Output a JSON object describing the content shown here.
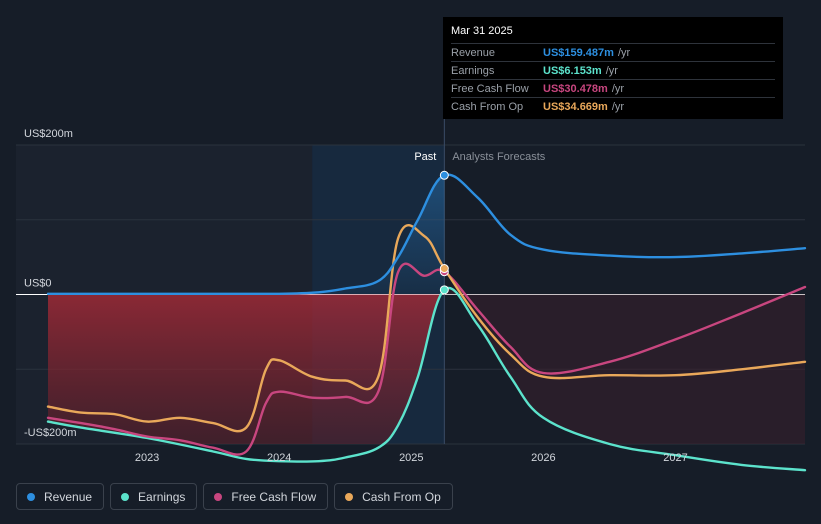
{
  "colors": {
    "revenue": "#2d8fe0",
    "earnings": "#5ce3cc",
    "free_cash_flow": "#c8467f",
    "cash_from_op": "#e9a85a",
    "background": "#161d28"
  },
  "tooltip": {
    "date": "Mar 31 2025",
    "rows": [
      {
        "label": "Revenue",
        "value": "US$159.487m",
        "unit": "/yr"
      },
      {
        "label": "Earnings",
        "value": "US$6.153m",
        "unit": "/yr"
      },
      {
        "label": "Free Cash Flow",
        "value": "US$30.478m",
        "unit": "/yr"
      },
      {
        "label": "Cash From Op",
        "value": "US$34.669m",
        "unit": "/yr"
      }
    ]
  },
  "legend": [
    {
      "label": "Revenue",
      "color": "#2d8fe0"
    },
    {
      "label": "Earnings",
      "color": "#5ce3cc"
    },
    {
      "label": "Free Cash Flow",
      "color": "#c8467f"
    },
    {
      "label": "Cash From Op",
      "color": "#e9a85a"
    }
  ],
  "chart_data": {
    "type": "line",
    "ylim": [
      -200,
      200
    ],
    "xlim": [
      2022.25,
      2027.98
    ],
    "y_tick_labels": [
      {
        "value": 200,
        "label": "US$200m"
      },
      {
        "value": 0,
        "label": "US$0"
      },
      {
        "value": -200,
        "label": "-US$200m"
      }
    ],
    "x_tick_labels": [
      {
        "value": 2023,
        "label": "2023"
      },
      {
        "value": 2024,
        "label": "2024"
      },
      {
        "value": 2025,
        "label": "2025"
      },
      {
        "value": 2026,
        "label": "2026"
      },
      {
        "value": 2027,
        "label": "2027"
      }
    ],
    "divider_x": 2025.25,
    "past_start_x": 2024.25,
    "past_label": "Past",
    "forecast_label": "Analysts Forecasts",
    "series": [
      {
        "name": "Revenue",
        "key": "revenue",
        "points": [
          [
            2022.25,
            1
          ],
          [
            2023,
            1
          ],
          [
            2023.5,
            1
          ],
          [
            2024,
            1
          ],
          [
            2024.3,
            3
          ],
          [
            2024.5,
            8
          ],
          [
            2024.75,
            18
          ],
          [
            2024.9,
            50
          ],
          [
            2025.05,
            100
          ],
          [
            2025.25,
            159.5
          ],
          [
            2025.5,
            130
          ],
          [
            2025.75,
            80
          ],
          [
            2026,
            60
          ],
          [
            2026.5,
            52
          ],
          [
            2027,
            50
          ],
          [
            2027.5,
            55
          ],
          [
            2027.98,
            62
          ]
        ]
      },
      {
        "name": "Earnings",
        "key": "earnings",
        "points": [
          [
            2022.25,
            -170
          ],
          [
            2022.5,
            -178
          ],
          [
            2023,
            -192
          ],
          [
            2023.5,
            -210
          ],
          [
            2023.75,
            -220
          ],
          [
            2024,
            -223
          ],
          [
            2024.3,
            -223
          ],
          [
            2024.5,
            -218
          ],
          [
            2024.75,
            -205
          ],
          [
            2024.9,
            -175
          ],
          [
            2025.05,
            -110
          ],
          [
            2025.25,
            6.2
          ],
          [
            2025.5,
            -40
          ],
          [
            2025.75,
            -110
          ],
          [
            2026,
            -165
          ],
          [
            2026.5,
            -200
          ],
          [
            2027,
            -215
          ],
          [
            2027.5,
            -228
          ],
          [
            2027.98,
            -235
          ]
        ]
      },
      {
        "name": "Free Cash Flow",
        "key": "free_cash_flow",
        "points": [
          [
            2022.25,
            -165
          ],
          [
            2022.5,
            -172
          ],
          [
            2022.75,
            -180
          ],
          [
            2023,
            -190
          ],
          [
            2023.25,
            -195
          ],
          [
            2023.5,
            -205
          ],
          [
            2023.75,
            -210
          ],
          [
            2023.9,
            -145
          ],
          [
            2024,
            -130
          ],
          [
            2024.25,
            -138
          ],
          [
            2024.5,
            -137
          ],
          [
            2024.75,
            -130
          ],
          [
            2024.9,
            30
          ],
          [
            2025.1,
            25
          ],
          [
            2025.25,
            30.5
          ],
          [
            2025.5,
            -20
          ],
          [
            2025.75,
            -70
          ],
          [
            2026,
            -105
          ],
          [
            2026.5,
            -90
          ],
          [
            2027,
            -60
          ],
          [
            2027.5,
            -25
          ],
          [
            2027.98,
            10
          ]
        ]
      },
      {
        "name": "Cash From Op",
        "key": "cash_from_op",
        "points": [
          [
            2022.25,
            -150
          ],
          [
            2022.5,
            -158
          ],
          [
            2022.75,
            -160
          ],
          [
            2023,
            -170
          ],
          [
            2023.25,
            -165
          ],
          [
            2023.5,
            -172
          ],
          [
            2023.75,
            -178
          ],
          [
            2023.9,
            -100
          ],
          [
            2024,
            -88
          ],
          [
            2024.25,
            -110
          ],
          [
            2024.5,
            -115
          ],
          [
            2024.75,
            -110
          ],
          [
            2024.9,
            75
          ],
          [
            2025.1,
            78
          ],
          [
            2025.25,
            34.7
          ],
          [
            2025.5,
            -30
          ],
          [
            2025.75,
            -80
          ],
          [
            2026,
            -110
          ],
          [
            2026.5,
            -108
          ],
          [
            2027,
            -108
          ],
          [
            2027.5,
            -100
          ],
          [
            2027.98,
            -90
          ]
        ]
      }
    ]
  }
}
